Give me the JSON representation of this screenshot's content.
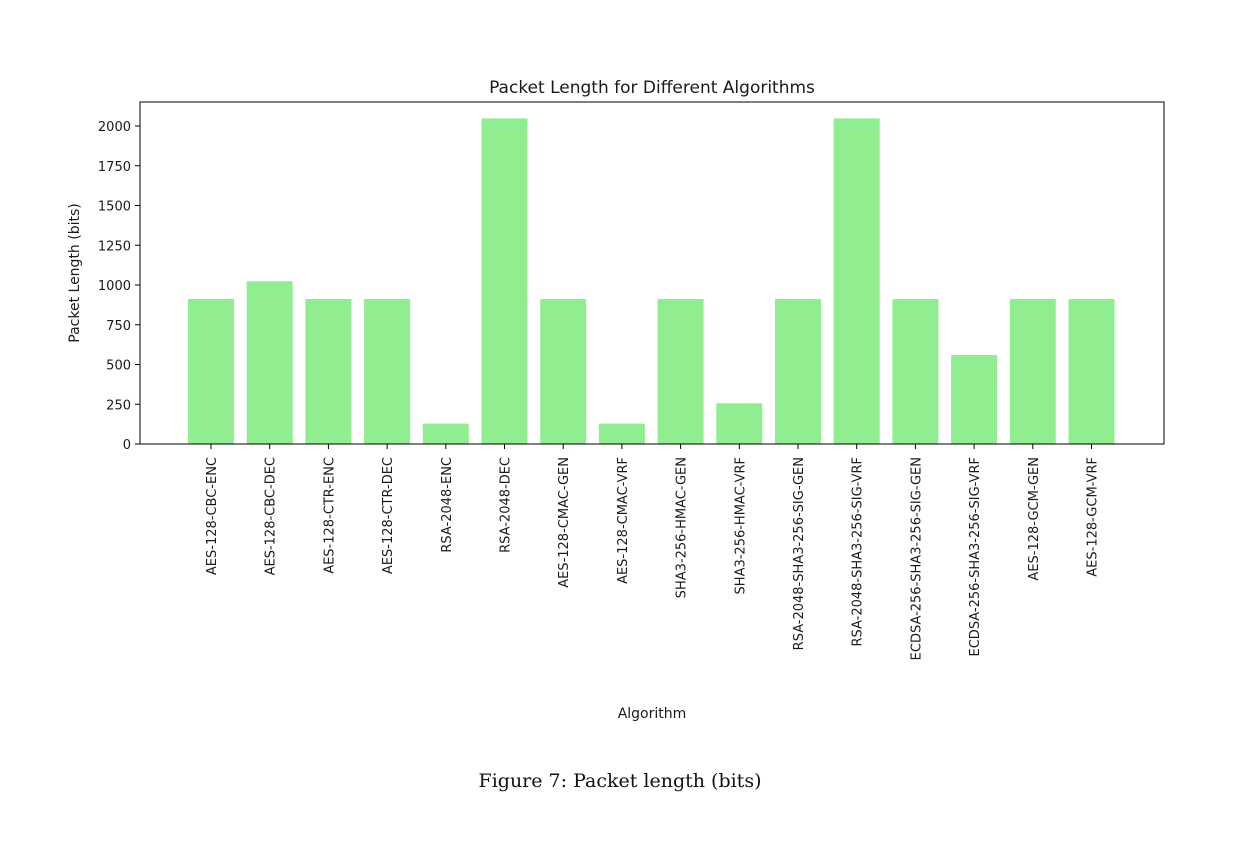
{
  "chart_data": {
    "type": "bar",
    "title": "Packet Length for Different Algorithms",
    "xlabel": "Algorithm",
    "ylabel": "Packet Length (bits)",
    "categories": [
      "AES-128-CBC-ENC",
      "AES-128-CBC-DEC",
      "AES-128-CTR-ENC",
      "AES-128-CTR-DEC",
      "RSA-2048-ENC",
      "RSA-2048-DEC",
      "AES-128-CMAC-GEN",
      "AES-128-CMAC-VRF",
      "SHA3-256-HMAC-GEN",
      "SHA3-256-HMAC-VRF",
      "RSA-2048-SHA3-256-SIG-GEN",
      "RSA-2048-SHA3-256-SIG-VRF",
      "ECDSA-256-SHA3-256-SIG-GEN",
      "ECDSA-256-SHA3-256-SIG-VRF",
      "AES-128-GCM-GEN",
      "AES-128-GCM-VRF"
    ],
    "values": [
      912,
      1024,
      912,
      912,
      128,
      2048,
      912,
      128,
      912,
      256,
      912,
      2048,
      912,
      560,
      912,
      912
    ],
    "ylim": [
      0,
      2150
    ],
    "yticks": [
      0,
      250,
      500,
      750,
      1000,
      1250,
      1500,
      1750,
      2000
    ],
    "bar_color": "#90ee90",
    "grid": false,
    "legend": "none"
  },
  "caption": "Figure 7: Packet length (bits)"
}
